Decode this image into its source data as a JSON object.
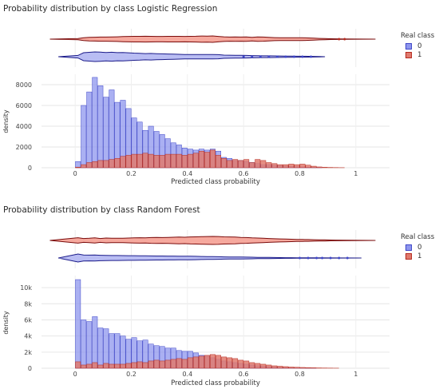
{
  "legend": {
    "title": "Real class",
    "items": [
      {
        "label": "0",
        "color": "#5b63e0"
      },
      {
        "label": "1",
        "color": "#e0473a"
      }
    ]
  },
  "colors": {
    "class0_fill": "#8e96ee",
    "class0_edge": "#3f47c8",
    "class1_fill": "#e07a6e",
    "class1_edge": "#b52a1f",
    "violin0": "#1c1c8a",
    "violin1": "#7a0b0b"
  },
  "chart_data": [
    {
      "type": "histogram",
      "title": "Probability distribution by class Logistic Regression",
      "xlabel": "Predicted class probability",
      "ylabel": "density",
      "xlim": [
        -0.12,
        1.12
      ],
      "ylim": [
        0,
        9000
      ],
      "x_ticks": [
        0,
        0.2,
        0.4,
        0.6,
        0.8,
        1
      ],
      "x_tick_labels": [
        "0",
        "0.2",
        "0.4",
        "0.6",
        "0.8",
        "1"
      ],
      "y_ticks": [
        0,
        2000,
        4000,
        6000,
        8000
      ],
      "y_tick_labels": [
        "0",
        "2000",
        "4000",
        "6000",
        "8000"
      ],
      "bin_start": 0,
      "bin_width": 0.02,
      "series": [
        {
          "name": "0",
          "values": [
            600,
            6000,
            7300,
            8700,
            7900,
            6800,
            7500,
            6300,
            6500,
            5700,
            4800,
            4400,
            3600,
            4000,
            3500,
            3200,
            2800,
            2400,
            2200,
            1900,
            1800,
            1700,
            1800,
            1700,
            1800,
            1600,
            1000,
            900,
            700,
            700,
            600,
            500,
            400,
            300,
            300,
            250,
            200,
            150,
            120,
            100,
            80,
            60,
            40,
            20
          ]
        },
        {
          "name": "1",
          "values": [
            60,
            300,
            500,
            600,
            700,
            700,
            800,
            900,
            1100,
            1200,
            1300,
            1300,
            1400,
            1300,
            1200,
            1200,
            1300,
            1300,
            1300,
            1200,
            1300,
            1400,
            1600,
            1500,
            1700,
            1200,
            900,
            700,
            800,
            700,
            800,
            500,
            800,
            700,
            500,
            400,
            300,
            300,
            350,
            300,
            350,
            250,
            150,
            80,
            50,
            30,
            20,
            10
          ]
        }
      ],
      "violin_outliers_class0": [
        0.6,
        0.63,
        0.66,
        0.69,
        0.72,
        0.75,
        0.78,
        0.81,
        0.84
      ],
      "violin_outliers_class1": [
        0.94,
        0.96
      ]
    },
    {
      "type": "histogram",
      "title": "Probability distribution by class Random Forest",
      "xlabel": "Predicted class probability",
      "ylabel": "density",
      "xlim": [
        -0.12,
        1.12
      ],
      "ylim": [
        0,
        11500
      ],
      "x_ticks": [
        0,
        0.2,
        0.4,
        0.6,
        0.8,
        1
      ],
      "x_tick_labels": [
        "0",
        "0.2",
        "0.4",
        "0.6",
        "0.8",
        "1"
      ],
      "y_ticks": [
        0,
        2000,
        4000,
        6000,
        8000,
        10000
      ],
      "y_tick_labels": [
        "0",
        "2k",
        "4k",
        "6k",
        "8k",
        "10k"
      ],
      "bin_start": 0,
      "bin_width": 0.02,
      "series": [
        {
          "name": "0",
          "values": [
            11000,
            6000,
            5800,
            6400,
            5000,
            4900,
            4300,
            4300,
            4000,
            3600,
            3800,
            3400,
            3500,
            3000,
            2800,
            2700,
            2500,
            2500,
            2200,
            2100,
            2100,
            1900,
            1600,
            1500,
            1300,
            1100,
            900,
            800,
            700,
            600,
            500,
            400,
            300,
            250,
            200,
            150,
            100,
            80,
            60,
            40,
            30,
            20,
            10
          ]
        },
        {
          "name": "1",
          "values": [
            800,
            400,
            500,
            700,
            400,
            600,
            500,
            500,
            500,
            600,
            700,
            800,
            700,
            900,
            1000,
            900,
            1000,
            1100,
            1200,
            1100,
            1300,
            1400,
            1500,
            1600,
            1700,
            1600,
            1400,
            1300,
            1200,
            1000,
            900,
            700,
            600,
            500,
            400,
            300,
            250,
            200,
            150,
            120,
            100,
            80,
            60,
            40,
            30,
            20,
            10
          ]
        }
      ],
      "violin_outliers_class0": [
        0.8,
        0.83,
        0.86,
        0.88,
        0.91,
        0.94,
        0.97
      ],
      "violin_outliers_class1": []
    }
  ]
}
